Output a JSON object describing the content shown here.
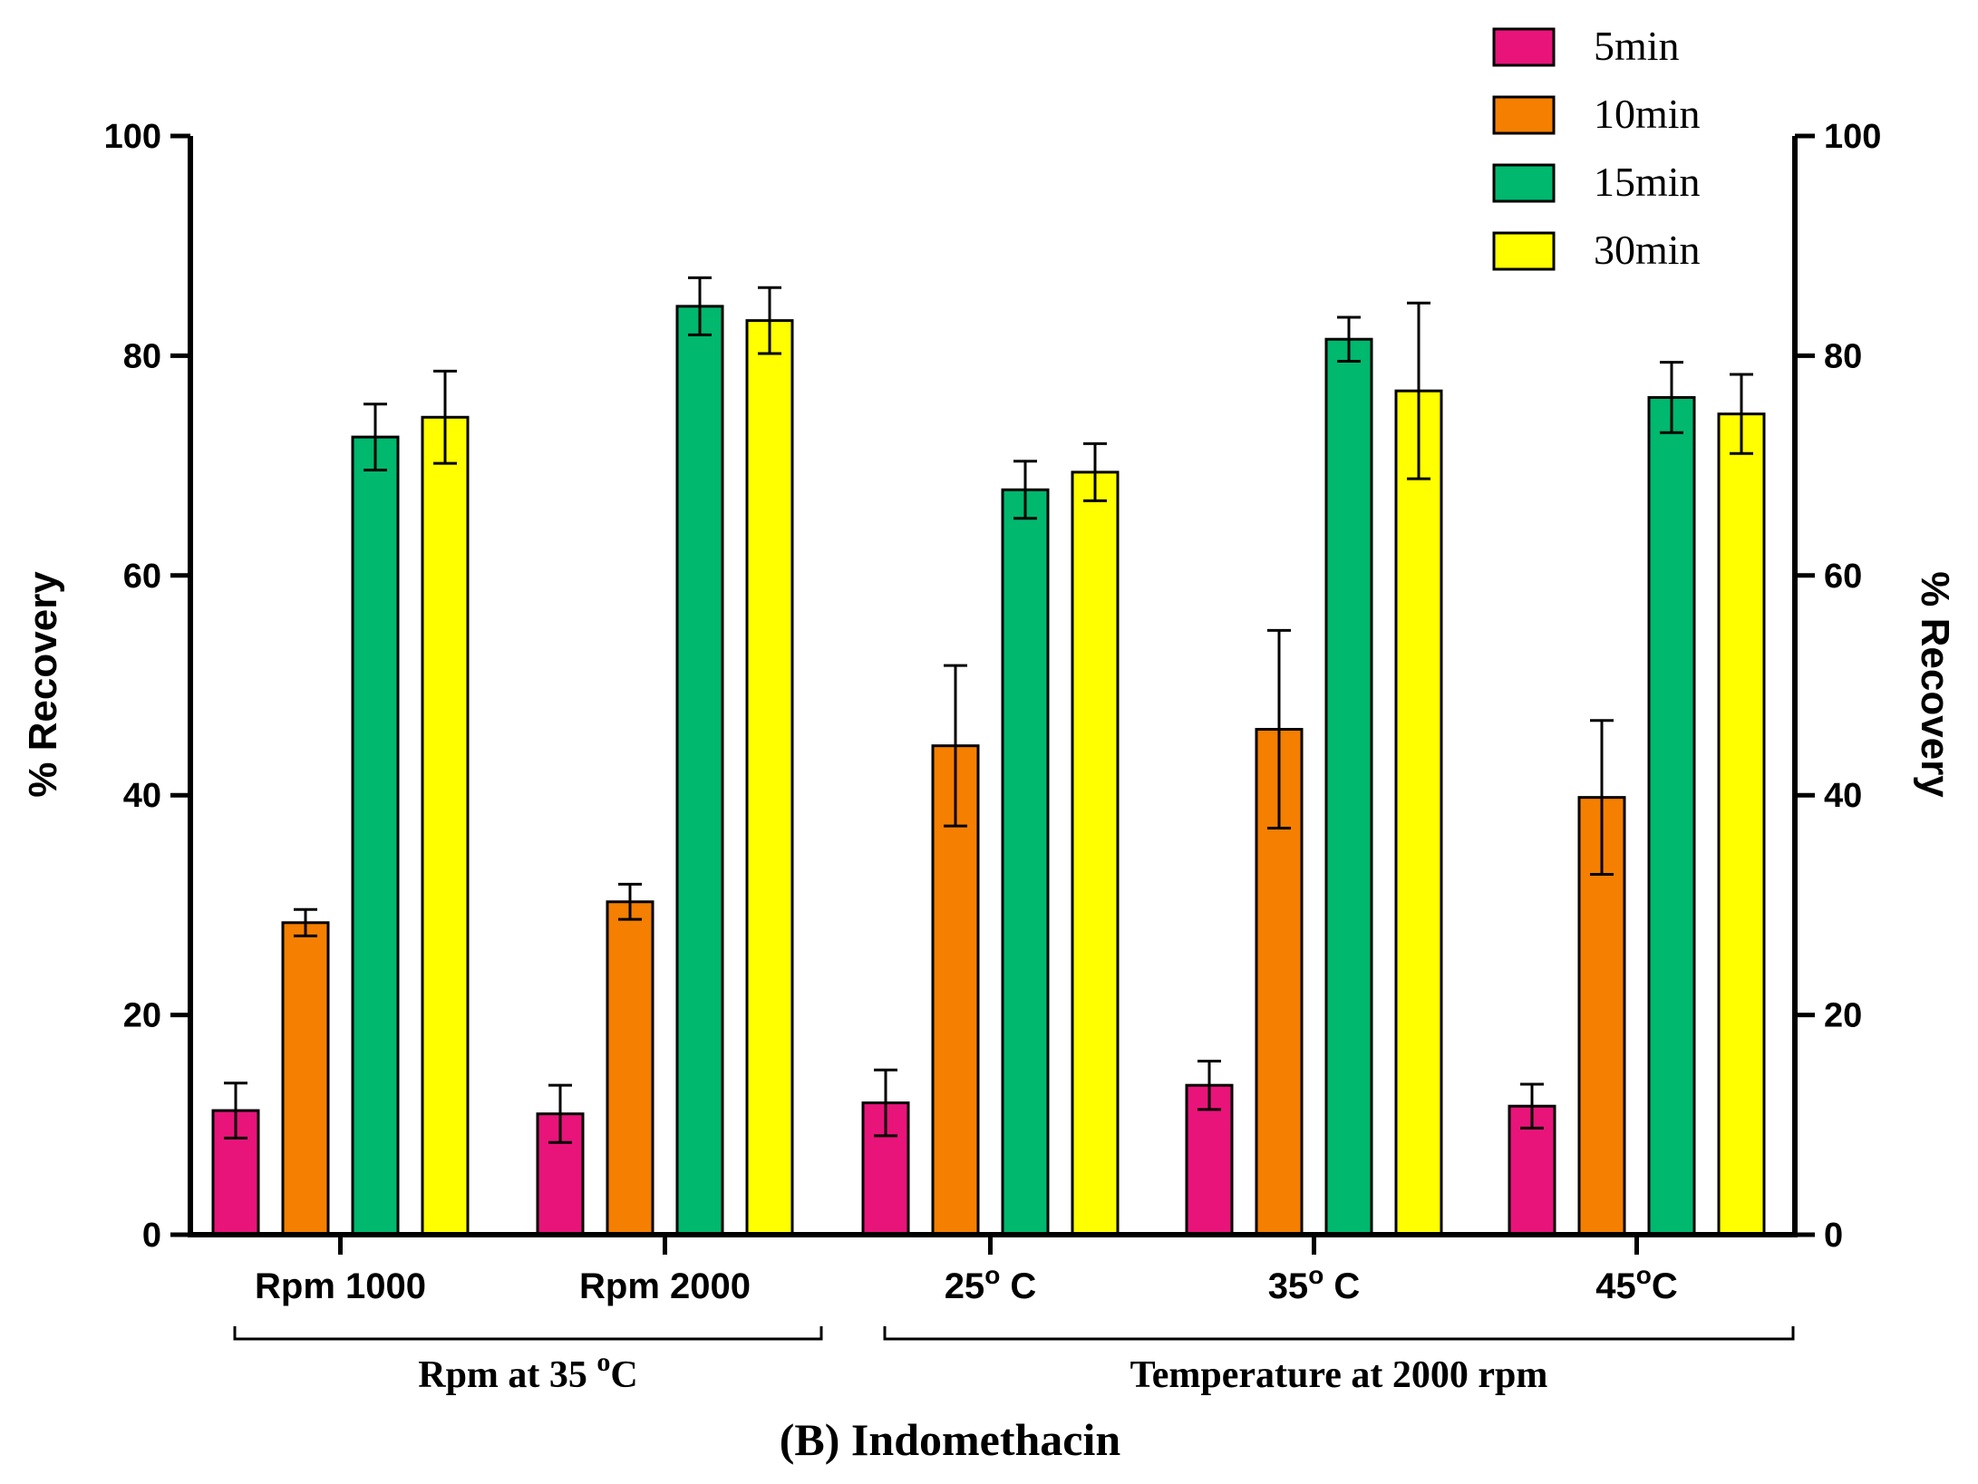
{
  "chart_data": {
    "type": "bar",
    "title": "(B) Indomethacin",
    "ylabel": "% Recovery",
    "ylabel_right": "% Recovery",
    "ylim": [
      0,
      100
    ],
    "yticks": [
      0,
      20,
      40,
      60,
      80,
      100
    ],
    "categories": [
      "Rpm 1000",
      "Rpm 2000",
      "25",
      "35",
      "45"
    ],
    "category_suffix": [
      "",
      "",
      "o C",
      "o C",
      "oC"
    ],
    "groups": [
      {
        "label": "Rpm at 35 ",
        "label_sup": "o",
        "label_tail": "C",
        "first": 0,
        "last": 1
      },
      {
        "label": "Temperature at 2000 rpm",
        "label_sup": "",
        "label_tail": "",
        "first": 2,
        "last": 4
      }
    ],
    "series": [
      {
        "name": "5min",
        "color": "#e8147a",
        "values": [
          11.3,
          11.0,
          12.0,
          13.6,
          11.7
        ],
        "errors": [
          2.5,
          2.6,
          3.0,
          2.2,
          2.0
        ]
      },
      {
        "name": "10min",
        "color": "#f57f00",
        "values": [
          28.4,
          30.3,
          44.5,
          46.0,
          39.8
        ],
        "errors": [
          1.2,
          1.6,
          7.3,
          9.0,
          7.0
        ]
      },
      {
        "name": "15min",
        "color": "#00b86e",
        "values": [
          72.6,
          84.5,
          67.8,
          81.5,
          76.2
        ],
        "errors": [
          3.0,
          2.6,
          2.6,
          2.0,
          3.2
        ]
      },
      {
        "name": "30min",
        "color": "#ffff00",
        "values": [
          74.4,
          83.2,
          69.4,
          76.8,
          74.7
        ],
        "errors": [
          4.2,
          3.0,
          2.6,
          8.0,
          3.6
        ]
      }
    ],
    "legend_position": "top-right"
  }
}
